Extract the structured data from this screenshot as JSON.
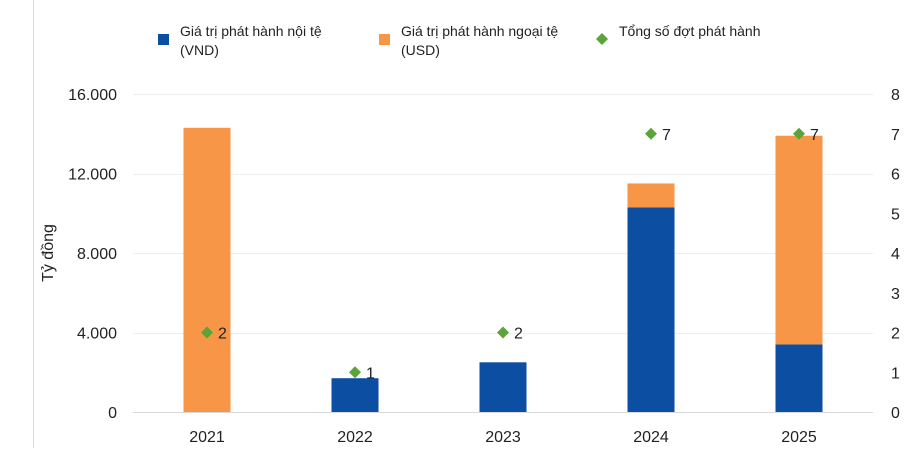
{
  "chart_data": {
    "type": "bar",
    "stacked": true,
    "categories": [
      "2021",
      "2022",
      "2023",
      "2024",
      "2025"
    ],
    "series": [
      {
        "name": "Giá trị phát hành nội tệ (VND)",
        "name_lines": [
          "Giá trị phát hành nội tệ",
          "(VND)"
        ],
        "color": "#0C4EA2",
        "marker": "bar",
        "axis": "left",
        "values": [
          0,
          1700,
          2500,
          10300,
          3400
        ]
      },
      {
        "name": "Giá trị phát hành ngoại tệ (USD)",
        "name_lines": [
          "Giá trị phát hành ngoại tệ",
          "(USD)"
        ],
        "color": "#F79646",
        "marker": "bar",
        "axis": "left",
        "values": [
          14300,
          0,
          0,
          1200,
          10500
        ]
      },
      {
        "name": "Tổng số đợt phát hành",
        "name_lines": [
          "Tổng số đợt phát hành"
        ],
        "color": "#5BA33B",
        "marker": "diamond",
        "axis": "right",
        "values": [
          2,
          1,
          2,
          7,
          7
        ]
      }
    ],
    "ylabel": "Tỷ đồng",
    "ylim": [
      0,
      16000
    ],
    "y_ticks": [
      "0",
      "4.000",
      "8.000",
      "12.000",
      "16.000"
    ],
    "y2lim": [
      0,
      8
    ],
    "y2_ticks": [
      "0",
      "1",
      "2",
      "3",
      "4",
      "5",
      "6",
      "7",
      "8"
    ],
    "grid": true,
    "legend_position": "top"
  }
}
